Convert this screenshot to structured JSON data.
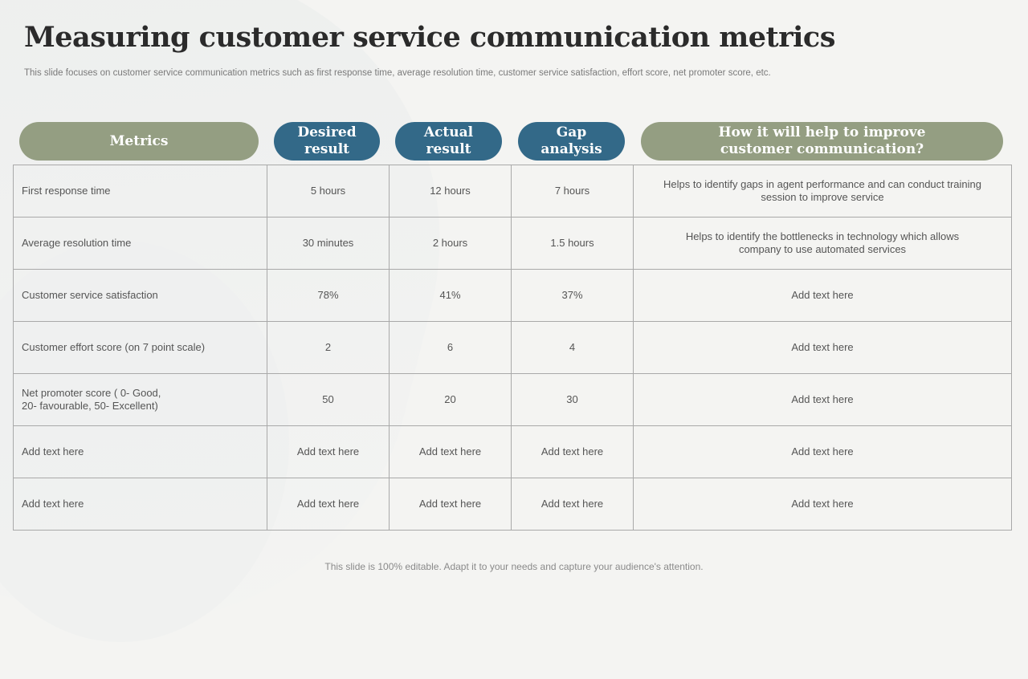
{
  "title": "Measuring customer service communication metrics",
  "subtitle": "This slide focuses on customer service communication metrics such as first response time, average resolution time, customer service satisfaction, effort score, net promoter score, etc.",
  "headers": {
    "metrics": "Metrics",
    "desired_1": "Desired",
    "desired_2": "result",
    "actual_1": "Actual",
    "actual_2": "result",
    "gap_1": "Gap",
    "gap_2": "analysis",
    "help_1": "How it will help to improve",
    "help_2": "customer communication?"
  },
  "colors": {
    "green_pill": "#949e82",
    "blue_pill": "#336988"
  },
  "rows": [
    {
      "metric": "First response time",
      "desired": "5 hours",
      "actual": "12 hours",
      "gap": "7 hours",
      "help": "Helps to identify gaps in agent performance  and can conduct training session to improve  service"
    },
    {
      "metric": "Average  resolution time",
      "desired": "30 minutes",
      "actual": "2 hours",
      "gap": "1.5 hours",
      "help": "Helps to identify the bottlenecks in technology which allows company to use automated services"
    },
    {
      "metric": "Customer  service  satisfaction",
      "desired": "78%",
      "actual": "41%",
      "gap": "37%",
      "help": "Add text here"
    },
    {
      "metric": "Customer  effort  score  (on 7 point scale)",
      "desired": "2",
      "actual": "6",
      "gap": "4",
      "help": "Add text here"
    },
    {
      "metric": "Net  promoter  score  ( 0-  Good, 20-  favourable,  50-  Excellent)",
      "desired": "50",
      "actual": "20",
      "gap": "30",
      "help": "Add text here"
    },
    {
      "metric": "Add text here",
      "desired": "Add text here",
      "actual": "Add text here",
      "gap": "Add text here",
      "help": "Add text here"
    },
    {
      "metric": "Add text here",
      "desired": "Add text here",
      "actual": "Add text here",
      "gap": "Add text here",
      "help": "Add text here"
    }
  ],
  "footer": "This slide is 100% editable. Adapt it to your needs and capture your audience's attention."
}
